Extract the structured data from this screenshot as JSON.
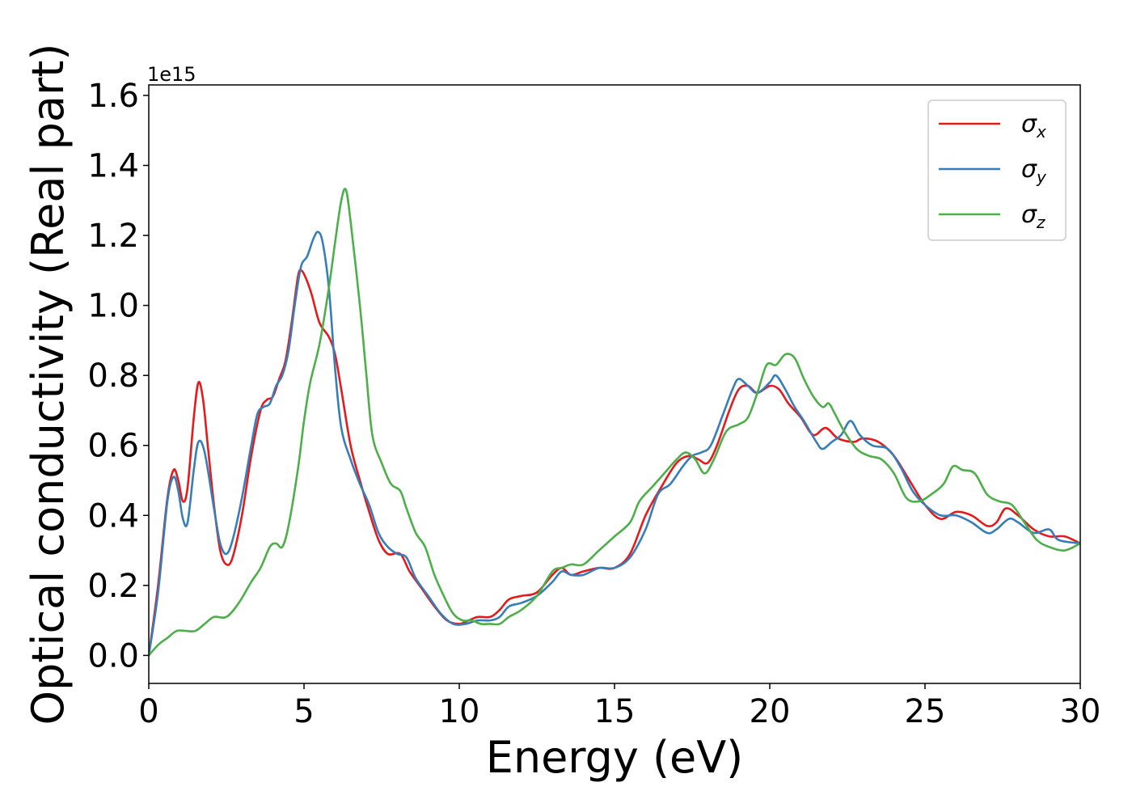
{
  "chart_data": {
    "type": "line",
    "xlabel": "Energy (eV)",
    "ylabel": "Optical conductivity (Real part)",
    "y_offset_text": "1e15",
    "xlim": [
      0,
      30
    ],
    "ylim": [
      -0.08,
      1.63
    ],
    "x_ticks": [
      0,
      5,
      10,
      15,
      20,
      25,
      30
    ],
    "x_tick_labels": [
      "0",
      "5",
      "10",
      "15",
      "20",
      "25",
      "30"
    ],
    "y_ticks": [
      0.0,
      0.2,
      0.4,
      0.6,
      0.8,
      1.0,
      1.2,
      1.4,
      1.6
    ],
    "y_tick_labels": [
      "0.0",
      "0.2",
      "0.4",
      "0.6",
      "0.8",
      "1.0",
      "1.2",
      "1.4",
      "1.6"
    ],
    "grid": false,
    "legend_position": "top-right",
    "series": [
      {
        "name": "σx",
        "name_base": "σ",
        "name_sub": "x",
        "color": "#e41a1c",
        "points": [
          [
            0,
            0
          ],
          [
            0.3,
            0.2
          ],
          [
            0.6,
            0.45
          ],
          [
            0.8,
            0.53
          ],
          [
            0.95,
            0.5
          ],
          [
            1.1,
            0.44
          ],
          [
            1.25,
            0.48
          ],
          [
            1.45,
            0.68
          ],
          [
            1.6,
            0.78
          ],
          [
            1.75,
            0.73
          ],
          [
            1.9,
            0.6
          ],
          [
            2.1,
            0.43
          ],
          [
            2.3,
            0.3
          ],
          [
            2.5,
            0.26
          ],
          [
            2.7,
            0.28
          ],
          [
            3.0,
            0.4
          ],
          [
            3.3,
            0.57
          ],
          [
            3.6,
            0.7
          ],
          [
            3.8,
            0.73
          ],
          [
            4.0,
            0.74
          ],
          [
            4.2,
            0.79
          ],
          [
            4.4,
            0.84
          ],
          [
            4.6,
            0.95
          ],
          [
            4.8,
            1.08
          ],
          [
            4.9,
            1.1
          ],
          [
            5.05,
            1.08
          ],
          [
            5.25,
            1.03
          ],
          [
            5.5,
            0.95
          ],
          [
            5.8,
            0.91
          ],
          [
            6.0,
            0.86
          ],
          [
            6.2,
            0.76
          ],
          [
            6.5,
            0.6
          ],
          [
            6.8,
            0.5
          ],
          [
            7.1,
            0.41
          ],
          [
            7.4,
            0.33
          ],
          [
            7.7,
            0.29
          ],
          [
            8.1,
            0.29
          ],
          [
            8.4,
            0.24
          ],
          [
            8.8,
            0.19
          ],
          [
            9.2,
            0.14
          ],
          [
            9.6,
            0.1
          ],
          [
            10.0,
            0.09
          ],
          [
            10.3,
            0.1
          ],
          [
            10.6,
            0.11
          ],
          [
            11.0,
            0.11
          ],
          [
            11.3,
            0.13
          ],
          [
            11.6,
            0.16
          ],
          [
            12.0,
            0.17
          ],
          [
            12.5,
            0.18
          ],
          [
            13.0,
            0.23
          ],
          [
            13.3,
            0.25
          ],
          [
            13.6,
            0.23
          ],
          [
            14.0,
            0.24
          ],
          [
            14.5,
            0.25
          ],
          [
            15.0,
            0.25
          ],
          [
            15.5,
            0.29
          ],
          [
            16.0,
            0.4
          ],
          [
            16.5,
            0.48
          ],
          [
            17.0,
            0.55
          ],
          [
            17.4,
            0.57
          ],
          [
            17.7,
            0.56
          ],
          [
            18.0,
            0.55
          ],
          [
            18.3,
            0.6
          ],
          [
            18.7,
            0.7
          ],
          [
            19.0,
            0.76
          ],
          [
            19.3,
            0.77
          ],
          [
            19.6,
            0.75
          ],
          [
            20.0,
            0.77
          ],
          [
            20.3,
            0.76
          ],
          [
            20.6,
            0.72
          ],
          [
            21.0,
            0.68
          ],
          [
            21.4,
            0.63
          ],
          [
            21.8,
            0.65
          ],
          [
            22.2,
            0.62
          ],
          [
            22.7,
            0.61
          ],
          [
            23.0,
            0.62
          ],
          [
            23.5,
            0.61
          ],
          [
            24.0,
            0.57
          ],
          [
            24.5,
            0.5
          ],
          [
            25.0,
            0.43
          ],
          [
            25.5,
            0.39
          ],
          [
            26.0,
            0.41
          ],
          [
            26.5,
            0.4
          ],
          [
            27.0,
            0.37
          ],
          [
            27.3,
            0.38
          ],
          [
            27.6,
            0.42
          ],
          [
            28.0,
            0.4
          ],
          [
            28.5,
            0.36
          ],
          [
            29.0,
            0.34
          ],
          [
            29.5,
            0.34
          ],
          [
            30,
            0.32
          ]
        ]
      },
      {
        "name": "σy",
        "name_base": "σ",
        "name_sub": "y",
        "color": "#377eb8",
        "points": [
          [
            0,
            0
          ],
          [
            0.3,
            0.18
          ],
          [
            0.6,
            0.44
          ],
          [
            0.8,
            0.51
          ],
          [
            0.95,
            0.47
          ],
          [
            1.1,
            0.39
          ],
          [
            1.25,
            0.38
          ],
          [
            1.45,
            0.53
          ],
          [
            1.6,
            0.61
          ],
          [
            1.8,
            0.58
          ],
          [
            2.1,
            0.42
          ],
          [
            2.3,
            0.32
          ],
          [
            2.5,
            0.29
          ],
          [
            2.7,
            0.33
          ],
          [
            3.0,
            0.45
          ],
          [
            3.3,
            0.6
          ],
          [
            3.5,
            0.69
          ],
          [
            3.7,
            0.71
          ],
          [
            3.9,
            0.72
          ],
          [
            4.1,
            0.77
          ],
          [
            4.3,
            0.8
          ],
          [
            4.5,
            0.87
          ],
          [
            4.7,
            1.0
          ],
          [
            4.9,
            1.11
          ],
          [
            5.1,
            1.14
          ],
          [
            5.3,
            1.19
          ],
          [
            5.45,
            1.21
          ],
          [
            5.6,
            1.18
          ],
          [
            5.8,
            1.05
          ],
          [
            6.0,
            0.82
          ],
          [
            6.2,
            0.65
          ],
          [
            6.5,
            0.56
          ],
          [
            6.8,
            0.49
          ],
          [
            7.1,
            0.43
          ],
          [
            7.4,
            0.35
          ],
          [
            7.7,
            0.31
          ],
          [
            8.0,
            0.29
          ],
          [
            8.3,
            0.28
          ],
          [
            8.6,
            0.22
          ],
          [
            9.0,
            0.17
          ],
          [
            9.4,
            0.12
          ],
          [
            9.8,
            0.09
          ],
          [
            10.2,
            0.09
          ],
          [
            10.6,
            0.1
          ],
          [
            11.0,
            0.1
          ],
          [
            11.3,
            0.11
          ],
          [
            11.6,
            0.14
          ],
          [
            12.0,
            0.15
          ],
          [
            12.5,
            0.17
          ],
          [
            13.0,
            0.21
          ],
          [
            13.3,
            0.24
          ],
          [
            13.6,
            0.23
          ],
          [
            14.0,
            0.23
          ],
          [
            14.5,
            0.25
          ],
          [
            15.0,
            0.25
          ],
          [
            15.5,
            0.28
          ],
          [
            16.0,
            0.36
          ],
          [
            16.4,
            0.46
          ],
          [
            16.8,
            0.49
          ],
          [
            17.2,
            0.54
          ],
          [
            17.5,
            0.57
          ],
          [
            17.8,
            0.58
          ],
          [
            18.1,
            0.6
          ],
          [
            18.5,
            0.69
          ],
          [
            18.8,
            0.76
          ],
          [
            19.0,
            0.79
          ],
          [
            19.3,
            0.77
          ],
          [
            19.6,
            0.75
          ],
          [
            20.0,
            0.78
          ],
          [
            20.2,
            0.8
          ],
          [
            20.5,
            0.76
          ],
          [
            20.8,
            0.71
          ],
          [
            21.1,
            0.67
          ],
          [
            21.5,
            0.61
          ],
          [
            21.7,
            0.59
          ],
          [
            22.0,
            0.61
          ],
          [
            22.3,
            0.63
          ],
          [
            22.6,
            0.67
          ],
          [
            22.9,
            0.63
          ],
          [
            23.3,
            0.6
          ],
          [
            23.8,
            0.59
          ],
          [
            24.2,
            0.54
          ],
          [
            24.6,
            0.47
          ],
          [
            25.0,
            0.43
          ],
          [
            25.5,
            0.4
          ],
          [
            26.0,
            0.4
          ],
          [
            26.5,
            0.38
          ],
          [
            27.0,
            0.35
          ],
          [
            27.3,
            0.36
          ],
          [
            27.7,
            0.39
          ],
          [
            28.0,
            0.38
          ],
          [
            28.5,
            0.35
          ],
          [
            29.0,
            0.36
          ],
          [
            29.3,
            0.33
          ],
          [
            30,
            0.32
          ]
        ]
      },
      {
        "name": "σz",
        "name_base": "σ",
        "name_sub": "z",
        "color": "#4daf4a",
        "points": [
          [
            0,
            0
          ],
          [
            0.3,
            0.03
          ],
          [
            0.6,
            0.05
          ],
          [
            0.9,
            0.07
          ],
          [
            1.2,
            0.07
          ],
          [
            1.5,
            0.07
          ],
          [
            1.8,
            0.09
          ],
          [
            2.1,
            0.11
          ],
          [
            2.5,
            0.11
          ],
          [
            2.9,
            0.15
          ],
          [
            3.3,
            0.21
          ],
          [
            3.6,
            0.25
          ],
          [
            3.9,
            0.31
          ],
          [
            4.1,
            0.32
          ],
          [
            4.3,
            0.31
          ],
          [
            4.5,
            0.37
          ],
          [
            4.8,
            0.53
          ],
          [
            5.0,
            0.67
          ],
          [
            5.2,
            0.78
          ],
          [
            5.5,
            0.89
          ],
          [
            5.8,
            1.05
          ],
          [
            6.0,
            1.18
          ],
          [
            6.2,
            1.3
          ],
          [
            6.35,
            1.33
          ],
          [
            6.5,
            1.24
          ],
          [
            6.8,
            1.0
          ],
          [
            7.0,
            0.81
          ],
          [
            7.2,
            0.63
          ],
          [
            7.5,
            0.55
          ],
          [
            7.8,
            0.49
          ],
          [
            8.1,
            0.47
          ],
          [
            8.3,
            0.42
          ],
          [
            8.6,
            0.35
          ],
          [
            8.9,
            0.31
          ],
          [
            9.2,
            0.23
          ],
          [
            9.5,
            0.17
          ],
          [
            9.8,
            0.12
          ],
          [
            10.1,
            0.1
          ],
          [
            10.4,
            0.1
          ],
          [
            10.7,
            0.09
          ],
          [
            11.0,
            0.09
          ],
          [
            11.3,
            0.09
          ],
          [
            11.6,
            0.11
          ],
          [
            12.0,
            0.13
          ],
          [
            12.5,
            0.17
          ],
          [
            13.0,
            0.24
          ],
          [
            13.3,
            0.25
          ],
          [
            13.6,
            0.26
          ],
          [
            14.0,
            0.26
          ],
          [
            14.5,
            0.3
          ],
          [
            15.0,
            0.34
          ],
          [
            15.5,
            0.38
          ],
          [
            15.8,
            0.44
          ],
          [
            16.2,
            0.48
          ],
          [
            16.6,
            0.52
          ],
          [
            17.0,
            0.56
          ],
          [
            17.3,
            0.58
          ],
          [
            17.6,
            0.56
          ],
          [
            17.9,
            0.52
          ],
          [
            18.2,
            0.56
          ],
          [
            18.6,
            0.64
          ],
          [
            19.0,
            0.66
          ],
          [
            19.3,
            0.68
          ],
          [
            19.6,
            0.75
          ],
          [
            19.9,
            0.83
          ],
          [
            20.2,
            0.83
          ],
          [
            20.5,
            0.86
          ],
          [
            20.8,
            0.85
          ],
          [
            21.1,
            0.79
          ],
          [
            21.4,
            0.74
          ],
          [
            21.7,
            0.71
          ],
          [
            21.9,
            0.72
          ],
          [
            22.1,
            0.69
          ],
          [
            22.4,
            0.64
          ],
          [
            22.8,
            0.59
          ],
          [
            23.2,
            0.57
          ],
          [
            23.6,
            0.56
          ],
          [
            24.0,
            0.52
          ],
          [
            24.4,
            0.45
          ],
          [
            24.8,
            0.44
          ],
          [
            25.2,
            0.46
          ],
          [
            25.6,
            0.49
          ],
          [
            25.9,
            0.54
          ],
          [
            26.2,
            0.53
          ],
          [
            26.6,
            0.52
          ],
          [
            27.0,
            0.46
          ],
          [
            27.4,
            0.44
          ],
          [
            27.8,
            0.43
          ],
          [
            28.2,
            0.38
          ],
          [
            28.6,
            0.33
          ],
          [
            29.0,
            0.31
          ],
          [
            29.5,
            0.3
          ],
          [
            30,
            0.32
          ]
        ]
      }
    ]
  }
}
